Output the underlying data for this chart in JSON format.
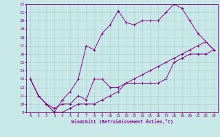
{
  "xlabel": "Windchill (Refroidissement éolien,°C)",
  "bg_color": "#c8e8e8",
  "line_color": "#880088",
  "grid_color": "#aacccc",
  "xlim": [
    -0.5,
    23.5
  ],
  "ylim": [
    9,
    22
  ],
  "xticks": [
    0,
    1,
    2,
    3,
    4,
    5,
    6,
    7,
    8,
    9,
    10,
    11,
    12,
    13,
    14,
    15,
    16,
    17,
    18,
    19,
    20,
    21,
    22,
    23
  ],
  "yticks": [
    9,
    10,
    11,
    12,
    13,
    14,
    15,
    16,
    17,
    18,
    19,
    20,
    21,
    22
  ],
  "line1_x": [
    0,
    1,
    2,
    3,
    4,
    5,
    6,
    7,
    8,
    9,
    10,
    11,
    12,
    13,
    14,
    15,
    16,
    17,
    18,
    19,
    20,
    21,
    22,
    23
  ],
  "line1_y": [
    13,
    11,
    10,
    9.5,
    10,
    10,
    11,
    10.5,
    13,
    13,
    12,
    12,
    12.5,
    12.5,
    12.5,
    12.5,
    12.5,
    13,
    15,
    15.5,
    16,
    16,
    16,
    16.5
  ],
  "line2_x": [
    0,
    1,
    2,
    3,
    4,
    5,
    6,
    7,
    8,
    9,
    10,
    11,
    12,
    13,
    14,
    15,
    16,
    17,
    18,
    19,
    20,
    21,
    22,
    23
  ],
  "line2_y": [
    13,
    11,
    10,
    9,
    10.5,
    11.5,
    13,
    17,
    16.5,
    18.5,
    19.5,
    21.2,
    19.8,
    19.5,
    20,
    20,
    20,
    21,
    22,
    21.5,
    20,
    18.5,
    17.5,
    16.5
  ],
  "line3_x": [
    0,
    1,
    2,
    3,
    4,
    5,
    6,
    7,
    8,
    9,
    10,
    11,
    12,
    13,
    14,
    15,
    16,
    17,
    18,
    19,
    20,
    21,
    22,
    23
  ],
  "line3_y": [
    13,
    11,
    10,
    9,
    9,
    9.5,
    10,
    10,
    10,
    10.5,
    11,
    11.5,
    12.5,
    13,
    13.5,
    14,
    14.5,
    15,
    15.5,
    16,
    16.5,
    17,
    17.5,
    16.5
  ]
}
